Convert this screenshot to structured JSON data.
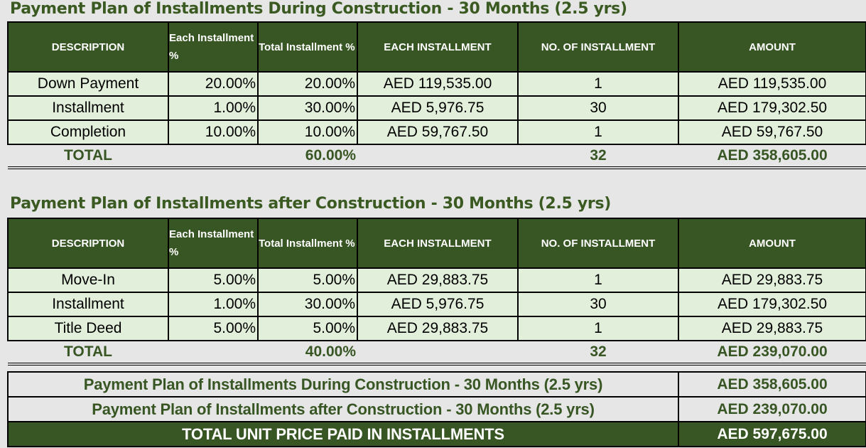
{
  "section1": {
    "title": "Payment Plan of Installments During Construction - 30 Months (2.5 yrs)",
    "headers": [
      "DESCRIPTION",
      "Each Installment %",
      "Total Installment %",
      "EACH INSTALLMENT",
      "NO. OF INSTALLMENT",
      "AMOUNT"
    ],
    "rows": [
      [
        "Down Payment",
        "20.00%",
        "20.00%",
        "AED 119,535.00",
        "1",
        "AED 119,535.00"
      ],
      [
        "Installment",
        "1.00%",
        "30.00%",
        "AED 5,976.75",
        "30",
        "AED 179,302.50"
      ],
      [
        "Completion",
        "10.00%",
        "10.00%",
        "AED 59,767.50",
        "1",
        "AED 59,767.50"
      ]
    ],
    "total": {
      "label": "TOTAL",
      "percent": "60.00%",
      "count": "32",
      "amount": "AED 358,605.00"
    }
  },
  "section2": {
    "title": "Payment Plan of Installments after Construction - 30 Months (2.5 yrs)",
    "headers": [
      "DESCRIPTION",
      "Each Installment %",
      "Total Installment %",
      "EACH INSTALLMENT",
      "NO. OF INSTALLMENT",
      "AMOUNT"
    ],
    "rows": [
      [
        "Move-In",
        "5.00%",
        "5.00%",
        "AED 29,883.75",
        "1",
        "AED 29,883.75"
      ],
      [
        "Installment",
        "1.00%",
        "30.00%",
        "AED 5,976.75",
        "30",
        "AED 179,302.50"
      ],
      [
        "Title Deed",
        "5.00%",
        "5.00%",
        "AED 29,883.75",
        "1",
        "AED 29,883.75"
      ]
    ],
    "total": {
      "label": "TOTAL",
      "percent": "40.00%",
      "count": "32",
      "amount": "AED 239,070.00"
    }
  },
  "summary": {
    "rows": [
      {
        "label": "Payment Plan of Installments During Construction - 30 Months (2.5 yrs)",
        "amount": "AED 358,605.00"
      },
      {
        "label": "Payment Plan of Installments after Construction - 30 Months (2.5 yrs)",
        "amount": "AED 239,070.00"
      }
    ],
    "grand_total": {
      "label": "TOTAL UNIT PRICE PAID IN INSTALLMENTS",
      "amount": "AED 597,675.00"
    }
  },
  "colors": {
    "header_green": "#375623",
    "row_fill": "#e2efda",
    "title_green": "#3a5a22",
    "background": "#e6e6e6"
  }
}
